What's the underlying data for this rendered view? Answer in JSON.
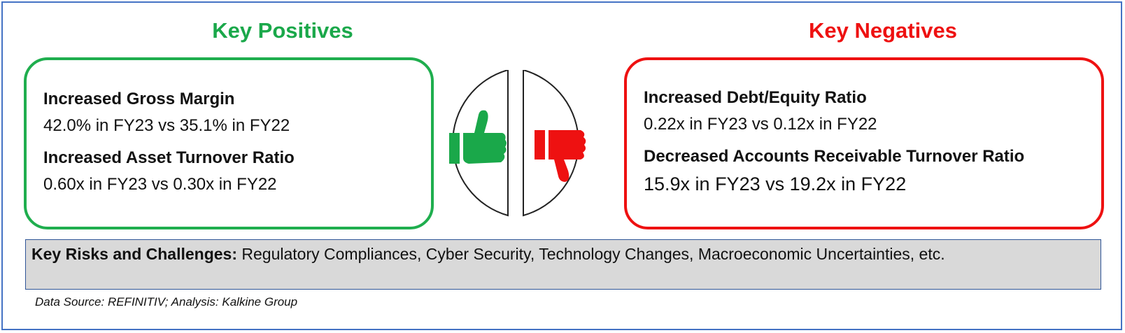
{
  "positives": {
    "heading": "Key Positives",
    "items": [
      {
        "title": "Increased Gross Margin",
        "value": "42.0% in FY23 vs 35.1% in FY22"
      },
      {
        "title": "Increased Asset Turnover Ratio",
        "value": "0.60x in FY23 vs 0.30x in FY22"
      }
    ]
  },
  "negatives": {
    "heading": "Key Negatives",
    "items": [
      {
        "title": "Increased Debt/Equity Ratio",
        "value": "0.22x in FY23 vs 0.12x in FY22"
      },
      {
        "title": "Decreased Accounts Receivable Turnover Ratio",
        "value": "15.9x in FY23 vs 19.2x in FY22"
      }
    ]
  },
  "icons": {
    "up": "thumbs-up-icon",
    "down": "thumbs-down-icon"
  },
  "risks": {
    "label": "Key Risks and Challenges:",
    "text": "Regulatory Compliances, Cyber Security, Technology Changes, Macroeconomic Uncertainties, etc."
  },
  "source": "Data Source: REFINITIV; Analysis: Kalkine Group",
  "colors": {
    "positive": "#1aa84a",
    "negative": "#ee1111",
    "frame": "#4472c4",
    "risk_bg": "#d9d9d9"
  }
}
